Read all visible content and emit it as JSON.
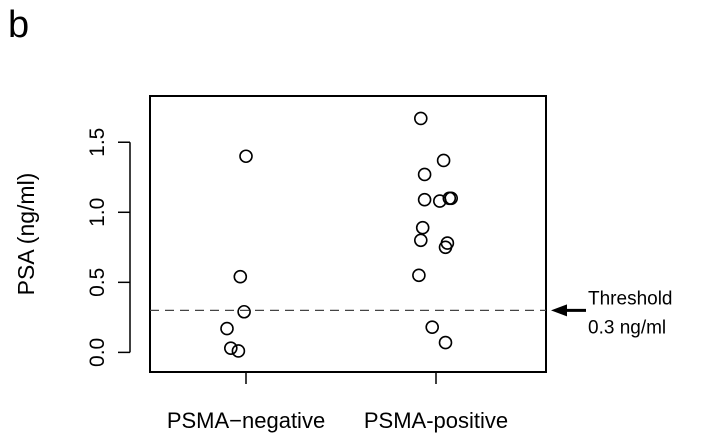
{
  "panel_label": "b",
  "chart_data": {
    "type": "scatter",
    "categories": [
      "PSMA−negative",
      "PSMA-positive"
    ],
    "ylabel": "PSA (ng/ml)",
    "ylim": [
      -0.14,
      1.83
    ],
    "yticks": [
      "0.0",
      "0.5",
      "1.0",
      "1.5"
    ],
    "grid": false,
    "series": [
      {
        "category": "PSMA−negative",
        "points": [
          {
            "x": 1.0,
            "y": 1.4
          },
          {
            "x": 0.97,
            "y": 0.54
          },
          {
            "x": 0.99,
            "y": 0.29
          },
          {
            "x": 0.9,
            "y": 0.17
          },
          {
            "x": 0.92,
            "y": 0.03
          },
          {
            "x": 0.96,
            "y": 0.01
          }
        ]
      },
      {
        "category": "PSMA-positive",
        "points": [
          {
            "x": 1.92,
            "y": 1.67
          },
          {
            "x": 2.04,
            "y": 1.37
          },
          {
            "x": 1.94,
            "y": 1.27
          },
          {
            "x": 1.94,
            "y": 1.09
          },
          {
            "x": 2.02,
            "y": 1.08
          },
          {
            "x": 2.07,
            "y": 1.1
          },
          {
            "x": 2.08,
            "y": 1.1
          },
          {
            "x": 1.93,
            "y": 0.89
          },
          {
            "x": 1.92,
            "y": 0.8
          },
          {
            "x": 2.06,
            "y": 0.78
          },
          {
            "x": 2.05,
            "y": 0.75
          },
          {
            "x": 1.91,
            "y": 0.55
          },
          {
            "x": 1.98,
            "y": 0.18
          },
          {
            "x": 2.05,
            "y": 0.07
          }
        ]
      }
    ],
    "threshold": {
      "y": 0.3,
      "label_line1": "Threshold",
      "label_line2": "0.3 ng/ml"
    }
  }
}
